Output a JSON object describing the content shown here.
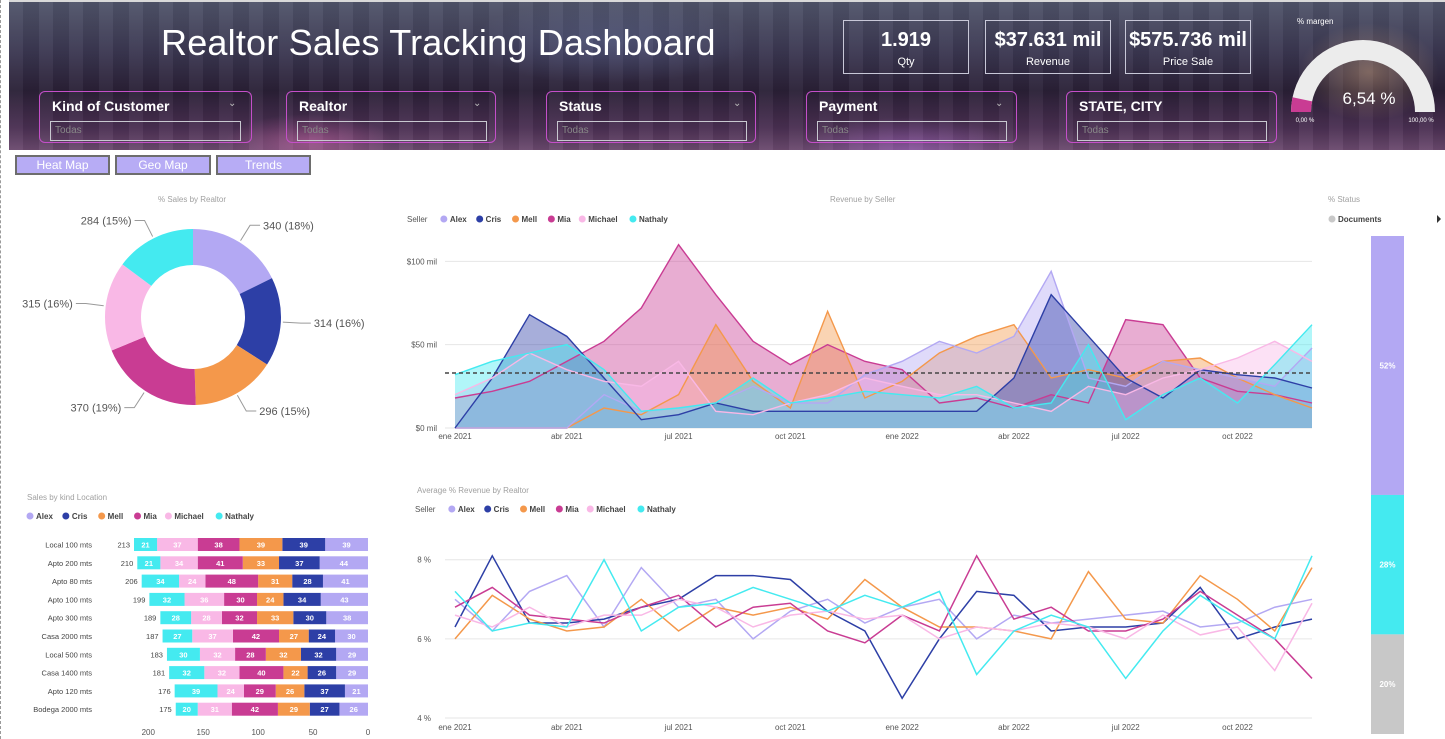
{
  "header": {
    "title": "Realtor Sales Tracking Dashboard",
    "kpis": [
      {
        "value": "1.919",
        "label": "Qty"
      },
      {
        "value": "$37.631 mil",
        "label": "Revenue"
      },
      {
        "value": "$575.736 mil",
        "label": "Price Sale"
      }
    ],
    "slicers": [
      {
        "label": "Kind of Customer",
        "value": "Todas"
      },
      {
        "label": "Realtor",
        "value": "Todas"
      },
      {
        "label": "Status",
        "value": "Todas"
      },
      {
        "label": "Payment",
        "value": "Todas"
      },
      {
        "label": "STATE, CITY",
        "value": "Todas"
      }
    ],
    "gauge": {
      "title": "% margen",
      "value_label": "6,54 %",
      "value": 0.0654,
      "min_label": "0,00 %",
      "max_label": "100,00 %"
    }
  },
  "nav": {
    "heat_map": "Heat Map",
    "geo_map": "Geo Map",
    "trends": "Trends"
  },
  "colors": {
    "Alex": "#b3a8f3",
    "Cris": "#2d3fa6",
    "Mell": "#f4984b",
    "Mia": "#c93c93",
    "Michael": "#f9b8e6",
    "Nathaly": "#44eaf0",
    "status_top": "#b3a8f3",
    "status_mid": "#44eaf0",
    "status_bot": "#c8c8c8"
  },
  "donut": {
    "title": "% Sales by Realtor",
    "slices": [
      {
        "name": "Alex",
        "value": 340,
        "label": "340 (18%)"
      },
      {
        "name": "Cris",
        "value": 314,
        "label": "314 (16%)"
      },
      {
        "name": "Mell",
        "value": 296,
        "label": "296 (15%)"
      },
      {
        "name": "Mia",
        "value": 370,
        "label": "370 (19%)"
      },
      {
        "name": "Michael",
        "value": 315,
        "label": "315 (16%)"
      },
      {
        "name": "Nathaly",
        "value": 284,
        "label": "284 (15%)"
      }
    ]
  },
  "chart_data": [
    {
      "type": "area",
      "title": "Revenue by Seller",
      "legend_title": "Seller",
      "x": [
        "ene 2021",
        "feb 2021",
        "mar 2021",
        "abr 2021",
        "may 2021",
        "jun 2021",
        "jul 2021",
        "ago 2021",
        "sep 2021",
        "oct 2021",
        "nov 2021",
        "dic 2021",
        "ene 2022",
        "feb 2022",
        "mar 2022",
        "abr 2022",
        "may 2022",
        "jun 2022",
        "jul 2022",
        "ago 2022",
        "sep 2022",
        "oct 2022",
        "nov 2022",
        "dic 2022"
      ],
      "x_ticks": [
        "ene 2021",
        "abr 2021",
        "jul 2021",
        "oct 2021",
        "ene 2022",
        "abr 2022",
        "jul 2022",
        "oct 2022"
      ],
      "y_ticks": [
        "$0 mil",
        "$50 mil",
        "$100 mil"
      ],
      "ylim": [
        0,
        120
      ],
      "average_line": 33,
      "series": [
        {
          "name": "Mia",
          "values": [
            18,
            22,
            28,
            40,
            52,
            72,
            110,
            80,
            52,
            38,
            50,
            40,
            35,
            15,
            18,
            12,
            20,
            15,
            65,
            62,
            30,
            22,
            20,
            15
          ]
        },
        {
          "name": "Mell",
          "values": [
            0,
            0,
            0,
            0,
            12,
            8,
            20,
            62,
            28,
            12,
            70,
            18,
            28,
            45,
            55,
            62,
            30,
            35,
            30,
            40,
            42,
            30,
            20,
            12
          ]
        },
        {
          "name": "Alex",
          "values": [
            0,
            0,
            0,
            0,
            20,
            10,
            12,
            15,
            25,
            15,
            15,
            32,
            40,
            52,
            45,
            55,
            94,
            30,
            25,
            40,
            35,
            30,
            25,
            48
          ]
        },
        {
          "name": "Cris",
          "values": [
            0,
            30,
            68,
            55,
            30,
            5,
            8,
            15,
            10,
            10,
            10,
            10,
            10,
            10,
            10,
            30,
            80,
            55,
            30,
            18,
            35,
            32,
            30,
            24
          ]
        },
        {
          "name": "Michael",
          "values": [
            20,
            30,
            45,
            35,
            28,
            25,
            40,
            10,
            8,
            15,
            20,
            30,
            25,
            20,
            20,
            15,
            10,
            25,
            20,
            30,
            35,
            42,
            52,
            40
          ]
        },
        {
          "name": "Nathaly",
          "values": [
            32,
            40,
            45,
            50,
            35,
            10,
            12,
            15,
            30,
            15,
            18,
            22,
            20,
            18,
            25,
            12,
            15,
            50,
            5,
            20,
            30,
            15,
            38,
            62
          ]
        }
      ]
    },
    {
      "type": "bar",
      "title": "Sales by kind Location",
      "orientation": "horizontal-stacked",
      "categories": [
        "Local 100 mts",
        "Apto 200 mts",
        "Apto 80 mts",
        "Apto 100 mts",
        "Apto 300 mts",
        "Casa 2000 mts",
        "Local 500 mts",
        "Casa 1400 mts",
        "Apto 120 mts",
        "Bodega 2000 mts"
      ],
      "totals": [
        213,
        210,
        206,
        199,
        189,
        187,
        183,
        181,
        176,
        175
      ],
      "x_ticks": [
        "200",
        "150",
        "100",
        "50",
        "0"
      ],
      "xlim": [
        0,
        213
      ],
      "series": [
        {
          "name": "Alex",
          "values": [
            39,
            44,
            41,
            43,
            38,
            30,
            29,
            29,
            21,
            26
          ]
        },
        {
          "name": "Cris",
          "values": [
            39,
            37,
            28,
            34,
            30,
            24,
            32,
            26,
            37,
            27
          ]
        },
        {
          "name": "Mell",
          "values": [
            39,
            33,
            31,
            24,
            33,
            27,
            32,
            22,
            26,
            29
          ]
        },
        {
          "name": "Mia",
          "values": [
            38,
            41,
            48,
            30,
            32,
            42,
            28,
            40,
            29,
            42
          ]
        },
        {
          "name": "Michael",
          "values": [
            37,
            34,
            24,
            36,
            28,
            37,
            32,
            32,
            24,
            31
          ]
        },
        {
          "name": "Nathaly",
          "values": [
            21,
            21,
            34,
            32,
            28,
            27,
            30,
            32,
            39,
            20
          ]
        }
      ]
    },
    {
      "type": "line",
      "title": "Average % Revenue by Realtor",
      "legend_title": "Seller",
      "x": [
        "ene 2021",
        "feb 2021",
        "mar 2021",
        "abr 2021",
        "may 2021",
        "jun 2021",
        "jul 2021",
        "ago 2021",
        "sep 2021",
        "oct 2021",
        "nov 2021",
        "dic 2021",
        "ene 2022",
        "feb 2022",
        "mar 2022",
        "abr 2022",
        "may 2022",
        "jun 2022",
        "jul 2022",
        "ago 2022",
        "sep 2022",
        "oct 2022",
        "nov 2022",
        "dic 2022"
      ],
      "x_ticks": [
        "ene 2021",
        "abr 2021",
        "jul 2021",
        "oct 2021",
        "ene 2022",
        "abr 2022",
        "jul 2022",
        "oct 2022"
      ],
      "y_ticks": [
        "4 %",
        "6 %",
        "8 %"
      ],
      "ylim": [
        4,
        8.6
      ],
      "series": [
        {
          "name": "Alex",
          "values": [
            7.0,
            6.2,
            7.2,
            7.6,
            6.3,
            7.8,
            6.8,
            7.0,
            6.0,
            6.7,
            7.0,
            6.4,
            6.8,
            7.0,
            6.0,
            6.6,
            6.4,
            6.5,
            6.6,
            6.7,
            6.3,
            6.4,
            6.8,
            7.0
          ]
        },
        {
          "name": "Cris",
          "values": [
            6.3,
            8.1,
            6.4,
            6.4,
            6.5,
            6.8,
            7.0,
            7.6,
            7.6,
            7.5,
            6.7,
            6.2,
            4.5,
            6.0,
            7.2,
            7.1,
            6.2,
            6.3,
            6.3,
            6.4,
            7.3,
            6.0,
            6.3,
            6.5
          ]
        },
        {
          "name": "Mell",
          "values": [
            6.0,
            7.1,
            6.5,
            6.2,
            6.3,
            7.0,
            6.2,
            6.8,
            6.6,
            6.8,
            6.5,
            7.5,
            6.8,
            6.3,
            6.3,
            6.2,
            6.0,
            7.7,
            6.5,
            6.4,
            7.6,
            7.0,
            6.2,
            7.8
          ]
        },
        {
          "name": "Mia",
          "values": [
            6.8,
            7.3,
            6.6,
            6.5,
            6.4,
            6.8,
            7.1,
            6.3,
            6.8,
            6.9,
            6.2,
            5.9,
            6.6,
            6.2,
            8.1,
            6.5,
            6.8,
            6.2,
            6.2,
            6.5,
            7.2,
            6.6,
            6.0,
            5.0
          ]
        },
        {
          "name": "Michael",
          "values": [
            6.6,
            6.3,
            6.8,
            6.3,
            6.6,
            6.6,
            7.0,
            6.8,
            6.3,
            6.6,
            6.7,
            6.5,
            6.6,
            6.0,
            6.3,
            6.2,
            6.4,
            6.3,
            6.0,
            6.6,
            6.1,
            6.3,
            5.2,
            6.9
          ]
        },
        {
          "name": "Nathaly",
          "values": [
            7.2,
            6.2,
            6.4,
            6.3,
            8.0,
            6.2,
            6.8,
            6.9,
            7.3,
            7.0,
            6.7,
            7.1,
            6.8,
            7.2,
            5.1,
            6.2,
            6.6,
            6.3,
            5.0,
            6.2,
            7.1,
            6.5,
            6.0,
            8.1
          ]
        }
      ]
    },
    {
      "type": "bar",
      "title": "% Status",
      "orientation": "vertical-stacked-100",
      "legend": [
        "Documents"
      ],
      "segments": [
        {
          "label": "52%",
          "value": 52
        },
        {
          "label": "28%",
          "value": 28
        },
        {
          "label": "20%",
          "value": 20
        }
      ]
    }
  ]
}
